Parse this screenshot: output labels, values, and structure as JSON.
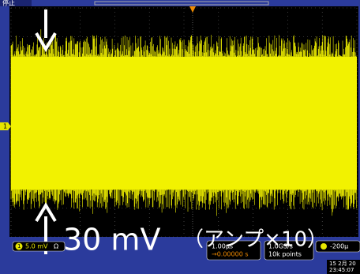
{
  "status": "停止",
  "channel": {
    "number": "1",
    "scale": "5.0 mV",
    "coupling": "Ω"
  },
  "horizontal": {
    "scale": "1.00μs",
    "position": "→0.00000 s"
  },
  "acquisition": {
    "rate": "1.0GS/s",
    "points": "10k points"
  },
  "trigger": {
    "level": "-200μ"
  },
  "datetime": {
    "date": "15 2月 20",
    "time": "23:45:07"
  },
  "annotation": {
    "amplitude": "30 mV",
    "note": "（アンプ×10）"
  },
  "markers": {
    "channel": "1"
  }
}
